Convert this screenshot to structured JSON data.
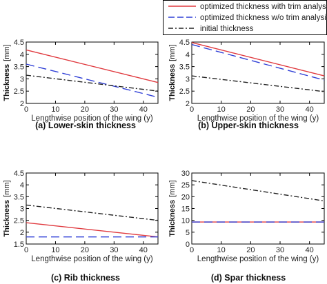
{
  "legend": [
    {
      "label": "optimized thickness with trim analysis",
      "color": "#e0393e",
      "dash": "solid"
    },
    {
      "label": "optimized thickness w/o trim analysis",
      "color": "#2f3fd6",
      "dash": "dashed"
    },
    {
      "label": "initial thickness",
      "color": "#222222",
      "dash": "dashdot"
    }
  ],
  "chart_data": [
    {
      "type": "line",
      "caption": "(a) Lower-skin thickness",
      "xlabel": "Lengthwise position of the wing (y)",
      "ylabel": "Thickness",
      "yunit": "[mm]",
      "xlim": [
        0,
        45
      ],
      "ylim": [
        2,
        4.5
      ],
      "xticks": [
        0,
        10,
        20,
        30,
        40
      ],
      "yticks": [
        2,
        2.5,
        3,
        3.5,
        4,
        4.5
      ],
      "series": [
        {
          "name": "optimized thickness with trim analysis",
          "x": [
            0,
            45
          ],
          "y": [
            4.18,
            2.85
          ]
        },
        {
          "name": "optimized thickness w/o trim analysis",
          "x": [
            0,
            45
          ],
          "y": [
            3.6,
            2.25
          ]
        },
        {
          "name": "initial thickness",
          "x": [
            0,
            45
          ],
          "y": [
            3.15,
            2.5
          ]
        }
      ]
    },
    {
      "type": "line",
      "caption": "(b) Upper-skin thickness",
      "xlabel": "Lengthwise position of the wing (y)",
      "ylabel": "Thickness",
      "yunit": "[mm]",
      "xlim": [
        0,
        45
      ],
      "ylim": [
        2,
        4.5
      ],
      "xticks": [
        0,
        10,
        20,
        30,
        40
      ],
      "yticks": [
        2,
        2.5,
        3,
        3.5,
        4,
        4.5
      ],
      "series": [
        {
          "name": "optimized thickness with trim analysis",
          "x": [
            0,
            45
          ],
          "y": [
            4.48,
            3.12
          ]
        },
        {
          "name": "optimized thickness w/o trim analysis",
          "x": [
            0,
            45
          ],
          "y": [
            4.4,
            2.95
          ]
        },
        {
          "name": "initial thickness",
          "x": [
            0,
            45
          ],
          "y": [
            3.12,
            2.48
          ]
        }
      ]
    },
    {
      "type": "line",
      "caption": "(c) Rib thickness",
      "xlabel": "Lengthwise position of the wing (y)",
      "ylabel": "Thickness",
      "yunit": "[mm]",
      "xlim": [
        0,
        45
      ],
      "ylim": [
        1.5,
        4.5
      ],
      "xticks": [
        0,
        10,
        20,
        30,
        40
      ],
      "yticks": [
        1.5,
        2,
        2.5,
        3,
        3.5,
        4,
        4.5
      ],
      "series": [
        {
          "name": "optimized thickness with trim analysis",
          "x": [
            0,
            45
          ],
          "y": [
            2.4,
            1.8
          ]
        },
        {
          "name": "optimized thickness w/o trim analysis",
          "x": [
            0,
            45
          ],
          "y": [
            1.8,
            1.8
          ]
        },
        {
          "name": "initial thickness",
          "x": [
            0,
            45
          ],
          "y": [
            3.15,
            2.5
          ]
        }
      ]
    },
    {
      "type": "line",
      "caption": "(d) Spar thickness",
      "xlabel": "Lengthwise position of the wing (y)",
      "ylabel": "Thickness",
      "yunit": "[mm]",
      "xlim": [
        0,
        45
      ],
      "ylim": [
        0,
        30
      ],
      "xticks": [
        0,
        10,
        20,
        30,
        40
      ],
      "yticks": [
        0,
        5,
        10,
        15,
        20,
        25,
        30
      ],
      "series": [
        {
          "name": "optimized thickness with trim analysis",
          "x": [
            0,
            45
          ],
          "y": [
            9.3,
            9.3
          ]
        },
        {
          "name": "optimized thickness w/o trim analysis",
          "x": [
            0,
            45
          ],
          "y": [
            9.3,
            9.3
          ]
        },
        {
          "name": "initial thickness",
          "x": [
            0,
            45
          ],
          "y": [
            26.8,
            18.2
          ]
        }
      ]
    }
  ]
}
